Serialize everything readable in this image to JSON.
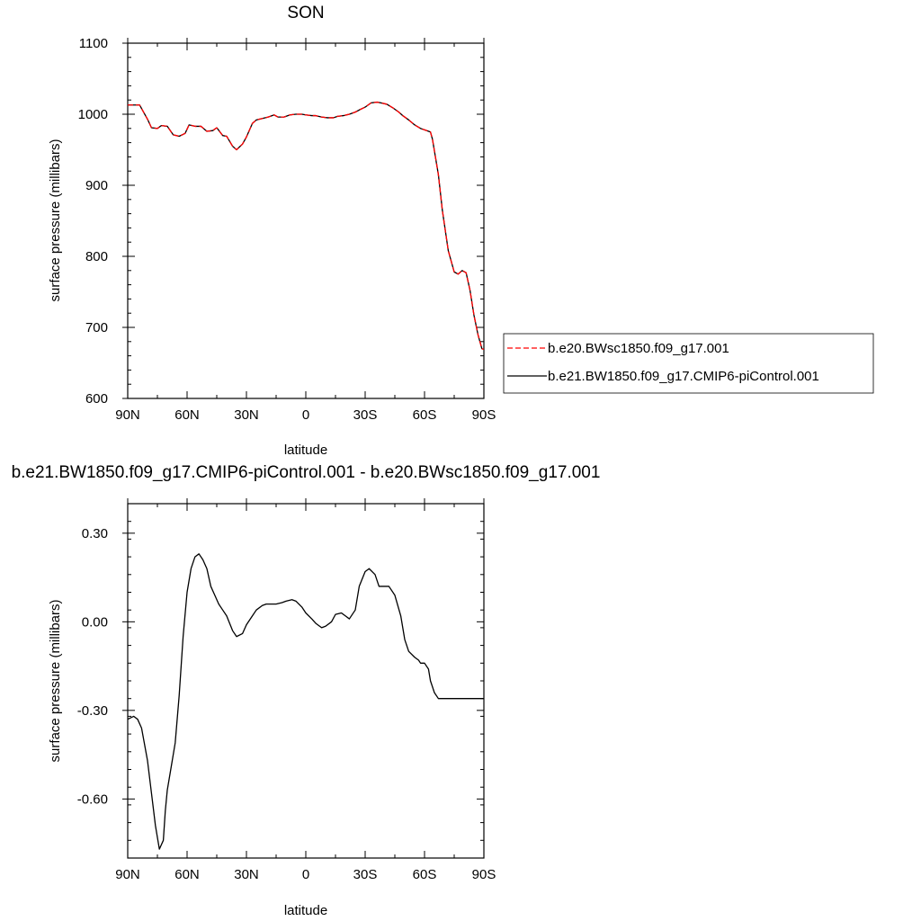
{
  "chart_data": [
    {
      "type": "line",
      "title": "SON",
      "xlabel": "latitude",
      "ylabel": "surface pressure (millibars)",
      "xlim": [
        90,
        -90
      ],
      "ylim": [
        600,
        1100
      ],
      "xticks": [
        {
          "v": 90,
          "label": "90N"
        },
        {
          "v": 60,
          "label": "60N"
        },
        {
          "v": 30,
          "label": "30N"
        },
        {
          "v": 0,
          "label": "0"
        },
        {
          "v": -30,
          "label": "30S"
        },
        {
          "v": -60,
          "label": "60S"
        },
        {
          "v": -90,
          "label": "90S"
        }
      ],
      "yticks": [
        {
          "v": 1100,
          "label": "1100"
        },
        {
          "v": 1000,
          "label": "1000"
        },
        {
          "v": 900,
          "label": "900"
        },
        {
          "v": 800,
          "label": "800"
        },
        {
          "v": 700,
          "label": "700"
        },
        {
          "v": 600,
          "label": "600"
        }
      ],
      "legend_position": "right",
      "x": [
        90,
        86,
        84,
        80,
        78,
        75,
        73,
        70,
        67,
        64,
        61,
        59,
        56,
        53,
        50,
        47,
        45,
        42,
        40,
        37,
        35,
        32,
        30,
        27,
        25,
        22,
        19,
        16,
        14,
        11,
        8,
        5,
        2,
        0,
        -3,
        -5,
        -8,
        -11,
        -14,
        -16,
        -19,
        -22,
        -25,
        -27,
        -30,
        -33,
        -36,
        -38,
        -41,
        -44,
        -47,
        -49,
        -52,
        -55,
        -58,
        -61,
        -63,
        -64,
        -67,
        -69,
        -72,
        -75,
        -77,
        -79,
        -81,
        -83,
        -85,
        -87,
        -89,
        -90
      ],
      "series": [
        {
          "name": "b.e20.BWsc1850.f09_g17.001",
          "color": "#ff0000",
          "dash": true,
          "values": [
            1013,
            1013,
            1013,
            993,
            981,
            980,
            984,
            983,
            971,
            969,
            973,
            985,
            983,
            983,
            976,
            977,
            981,
            970,
            969,
            955,
            950,
            958,
            968,
            987,
            992,
            994,
            996,
            999,
            996,
            996,
            999,
            1000,
            1000,
            999,
            998,
            998,
            996,
            995,
            995,
            997,
            998,
            1000,
            1003,
            1006,
            1010,
            1016,
            1017,
            1016,
            1014,
            1009,
            1003,
            998,
            992,
            985,
            980,
            977,
            975,
            965,
            915,
            865,
            808,
            778,
            775,
            780,
            777,
            752,
            717,
            690,
            670,
            669
          ]
        },
        {
          "name": "b.e21.BW1850.f09_g17.CMIP6-piControl.001",
          "color": "#000000",
          "dash": false,
          "values": [
            1013,
            1013,
            1013,
            993,
            981,
            980,
            984,
            983,
            971,
            969,
            973,
            985,
            983,
            983,
            976,
            977,
            981,
            970,
            969,
            955,
            950,
            958,
            968,
            987,
            992,
            994,
            996,
            999,
            996,
            996,
            999,
            1000,
            1000,
            999,
            998,
            998,
            996,
            995,
            995,
            997,
            998,
            1000,
            1003,
            1006,
            1010,
            1016,
            1017,
            1016,
            1014,
            1009,
            1003,
            998,
            992,
            985,
            980,
            977,
            975,
            965,
            915,
            865,
            808,
            778,
            775,
            780,
            777,
            752,
            717,
            690,
            670,
            669
          ]
        }
      ]
    },
    {
      "type": "line",
      "title": "b.e21.BW1850.f09_g17.CMIP6-piControl.001 - b.e20.BWsc1850.f09_g17.001",
      "xlabel": "latitude",
      "ylabel": "surface pressure (millibars)",
      "xlim": [
        90,
        -90
      ],
      "ylim": [
        -0.8,
        0.4
      ],
      "xticks": [
        {
          "v": 90,
          "label": "90N"
        },
        {
          "v": 60,
          "label": "60N"
        },
        {
          "v": 30,
          "label": "30N"
        },
        {
          "v": 0,
          "label": "0"
        },
        {
          "v": -30,
          "label": "30S"
        },
        {
          "v": -60,
          "label": "60S"
        },
        {
          "v": -90,
          "label": "90S"
        }
      ],
      "yticks": [
        {
          "v": 0.3,
          "label": "0.30"
        },
        {
          "v": 0.0,
          "label": "0.00"
        },
        {
          "v": -0.3,
          "label": "-0.30"
        },
        {
          "v": -0.6,
          "label": "-0.60"
        }
      ],
      "x": [
        90,
        87,
        85,
        83,
        80,
        78,
        76,
        74,
        72,
        71,
        70,
        68,
        66,
        64,
        62,
        60,
        58,
        56,
        54,
        52,
        50,
        48,
        46,
        44,
        42,
        40,
        37,
        35,
        32,
        30,
        27,
        25,
        22,
        20,
        18,
        15,
        12,
        10,
        7,
        5,
        2,
        0,
        -3,
        -5,
        -8,
        -10,
        -13,
        -15,
        -18,
        -20,
        -22,
        -25,
        -27,
        -30,
        -32,
        -35,
        -37,
        -40,
        -42,
        -45,
        -48,
        -50,
        -52,
        -55,
        -57,
        -58,
        -60,
        -62,
        -63,
        -65,
        -67,
        -68,
        -70,
        -72,
        -74,
        -76,
        -78,
        -80,
        -82,
        -84,
        -85,
        -87,
        -89,
        -90
      ],
      "series": [
        {
          "name": "",
          "color": "#000000",
          "dash": false,
          "values": [
            -0.33,
            -0.32,
            -0.33,
            -0.36,
            -0.47,
            -0.58,
            -0.69,
            -0.77,
            -0.74,
            -0.64,
            -0.57,
            -0.49,
            -0.41,
            -0.25,
            -0.05,
            0.1,
            0.18,
            0.22,
            0.23,
            0.21,
            0.18,
            0.12,
            0.09,
            0.06,
            0.04,
            0.02,
            -0.03,
            -0.05,
            -0.04,
            -0.01,
            0.02,
            0.04,
            0.055,
            0.06,
            0.06,
            0.06,
            0.065,
            0.07,
            0.075,
            0.07,
            0.05,
            0.03,
            0.01,
            -0.005,
            -0.02,
            -0.015,
            0.0,
            0.025,
            0.03,
            0.02,
            0.01,
            0.04,
            0.12,
            0.17,
            0.18,
            0.16,
            0.12,
            0.12,
            0.12,
            0.09,
            0.02,
            -0.06,
            -0.1,
            -0.12,
            -0.13,
            -0.14,
            -0.14,
            -0.16,
            -0.2,
            -0.24,
            -0.26,
            -0.26,
            -0.26,
            -0.26,
            -0.26,
            -0.26,
            -0.26,
            -0.26,
            -0.26,
            -0.26,
            -0.26,
            -0.26,
            -0.26,
            -0.26
          ]
        }
      ]
    }
  ]
}
